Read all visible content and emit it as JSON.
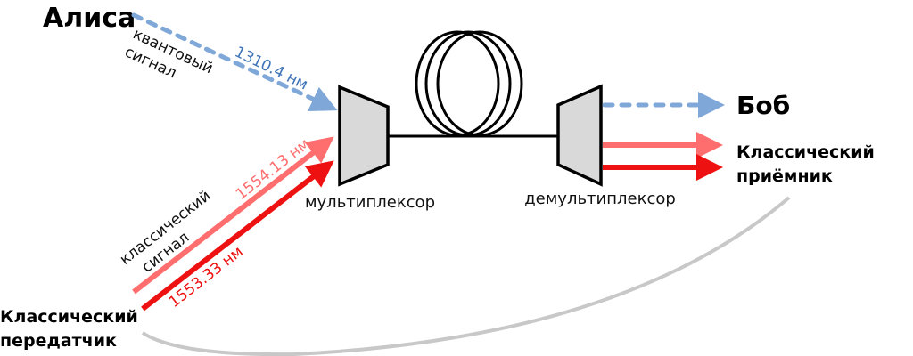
{
  "nodes": {
    "alice": "Алиса",
    "bob": "Боб",
    "transmitter": [
      "Классический",
      "передатчик"
    ],
    "receiver": [
      "Классический",
      "приёмник"
    ],
    "multiplexer": "мультиплексор",
    "demultiplexer": "демультиплексор"
  },
  "signals": {
    "quantum_label": [
      "квантовый",
      "сигнал"
    ],
    "quantum_wavelength": "1310.4 нм",
    "classical_label": [
      "классический",
      "сигнал"
    ],
    "classical_wavelength_1": "1554.13 нм",
    "classical_wavelength_2": "1553.33 нм"
  },
  "colors": {
    "quantum": "#7fa8d8",
    "quantum_text": "#3f74b8",
    "classical_light": "#ff6e6e",
    "classical_dark": "#ee1111",
    "device_fill": "#d9d9d9",
    "feedback": "#c8c8c8"
  }
}
